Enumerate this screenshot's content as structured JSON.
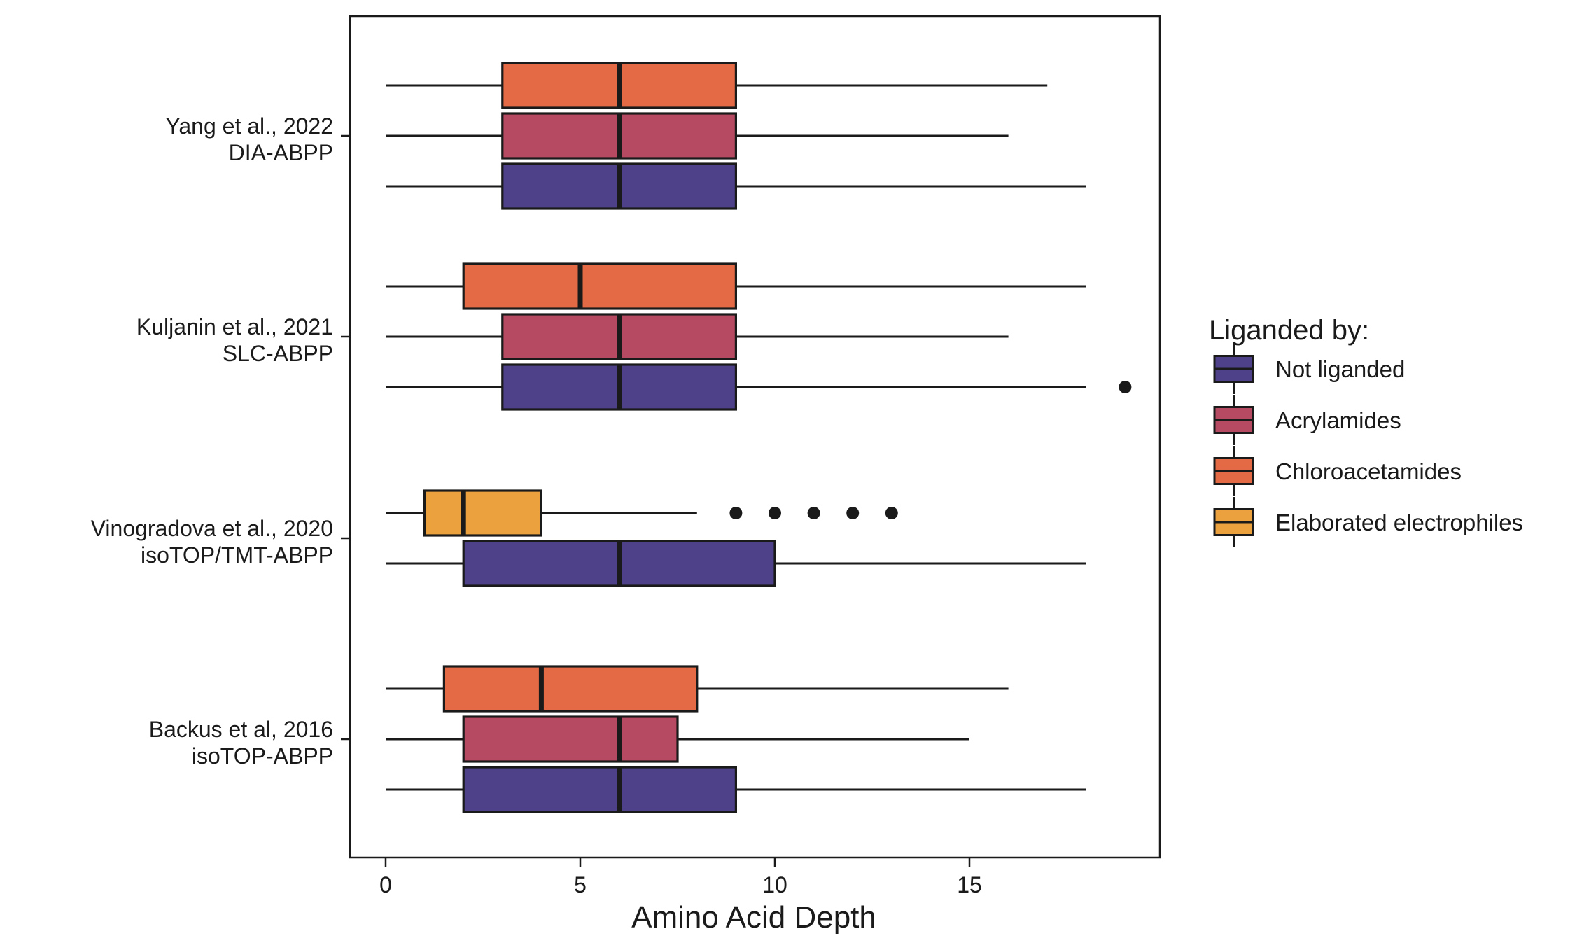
{
  "chart_data": {
    "type": "boxplot",
    "orientation": "horizontal",
    "xlabel": "Amino Acid Depth",
    "xlim": [
      -0.9,
      20
    ],
    "xticks": [
      0,
      5,
      10,
      15
    ],
    "grid": false,
    "legend": {
      "title": "Liganded by:",
      "placement": "right",
      "entries": [
        {
          "name": "Not liganded",
          "color": "#4e4189"
        },
        {
          "name": "Acrylamides",
          "color": "#b54a62"
        },
        {
          "name": "Chloroacetamides",
          "color": "#e36a44"
        },
        {
          "name": "Elaborated electrophiles",
          "color": "#eba13e"
        }
      ]
    },
    "categories": [
      {
        "line1": "Yang et al., 2022",
        "line2": "DIA-ABPP",
        "boxes": [
          {
            "series": "Chloroacetamides",
            "min": 0,
            "q1": 3,
            "median": 6,
            "q3": 9,
            "max": 17,
            "outliers": []
          },
          {
            "series": "Acrylamides",
            "min": 0,
            "q1": 3,
            "median": 6,
            "q3": 9,
            "max": 16,
            "outliers": []
          },
          {
            "series": "Not liganded",
            "min": 0,
            "q1": 3,
            "median": 6,
            "q3": 9,
            "max": 18,
            "outliers": []
          }
        ]
      },
      {
        "line1": "Kuljanin et al., 2021",
        "line2": "SLC-ABPP",
        "boxes": [
          {
            "series": "Chloroacetamides",
            "min": 0,
            "q1": 2,
            "median": 5,
            "q3": 9,
            "max": 18,
            "outliers": []
          },
          {
            "series": "Acrylamides",
            "min": 0,
            "q1": 3,
            "median": 6,
            "q3": 9,
            "max": 16,
            "outliers": []
          },
          {
            "series": "Not liganded",
            "min": 0,
            "q1": 3,
            "median": 6,
            "q3": 9,
            "max": 18,
            "outliers": [
              19
            ]
          }
        ]
      },
      {
        "line1": "Vinogradova et al., 2020",
        "line2": "isoTOP/TMT-ABPP",
        "boxes": [
          {
            "series": "Elaborated electrophiles",
            "min": 0,
            "q1": 1,
            "median": 2,
            "q3": 4,
            "max": 8,
            "outliers": [
              9,
              10,
              11,
              12,
              13
            ]
          },
          {
            "series": "Not liganded",
            "min": 0,
            "q1": 2,
            "median": 6,
            "q3": 10,
            "max": 18,
            "outliers": []
          }
        ]
      },
      {
        "line1": "Backus et al, 2016",
        "line2": "isoTOP-ABPP",
        "boxes": [
          {
            "series": "Chloroacetamides",
            "min": 0,
            "q1": 1.5,
            "median": 4,
            "q3": 8,
            "max": 16,
            "outliers": []
          },
          {
            "series": "Acrylamides",
            "min": 0,
            "q1": 2,
            "median": 6,
            "q3": 7.5,
            "max": 15,
            "outliers": []
          },
          {
            "series": "Not liganded",
            "min": 0,
            "q1": 2,
            "median": 6,
            "q3": 9,
            "max": 18,
            "outliers": []
          }
        ]
      }
    ]
  }
}
